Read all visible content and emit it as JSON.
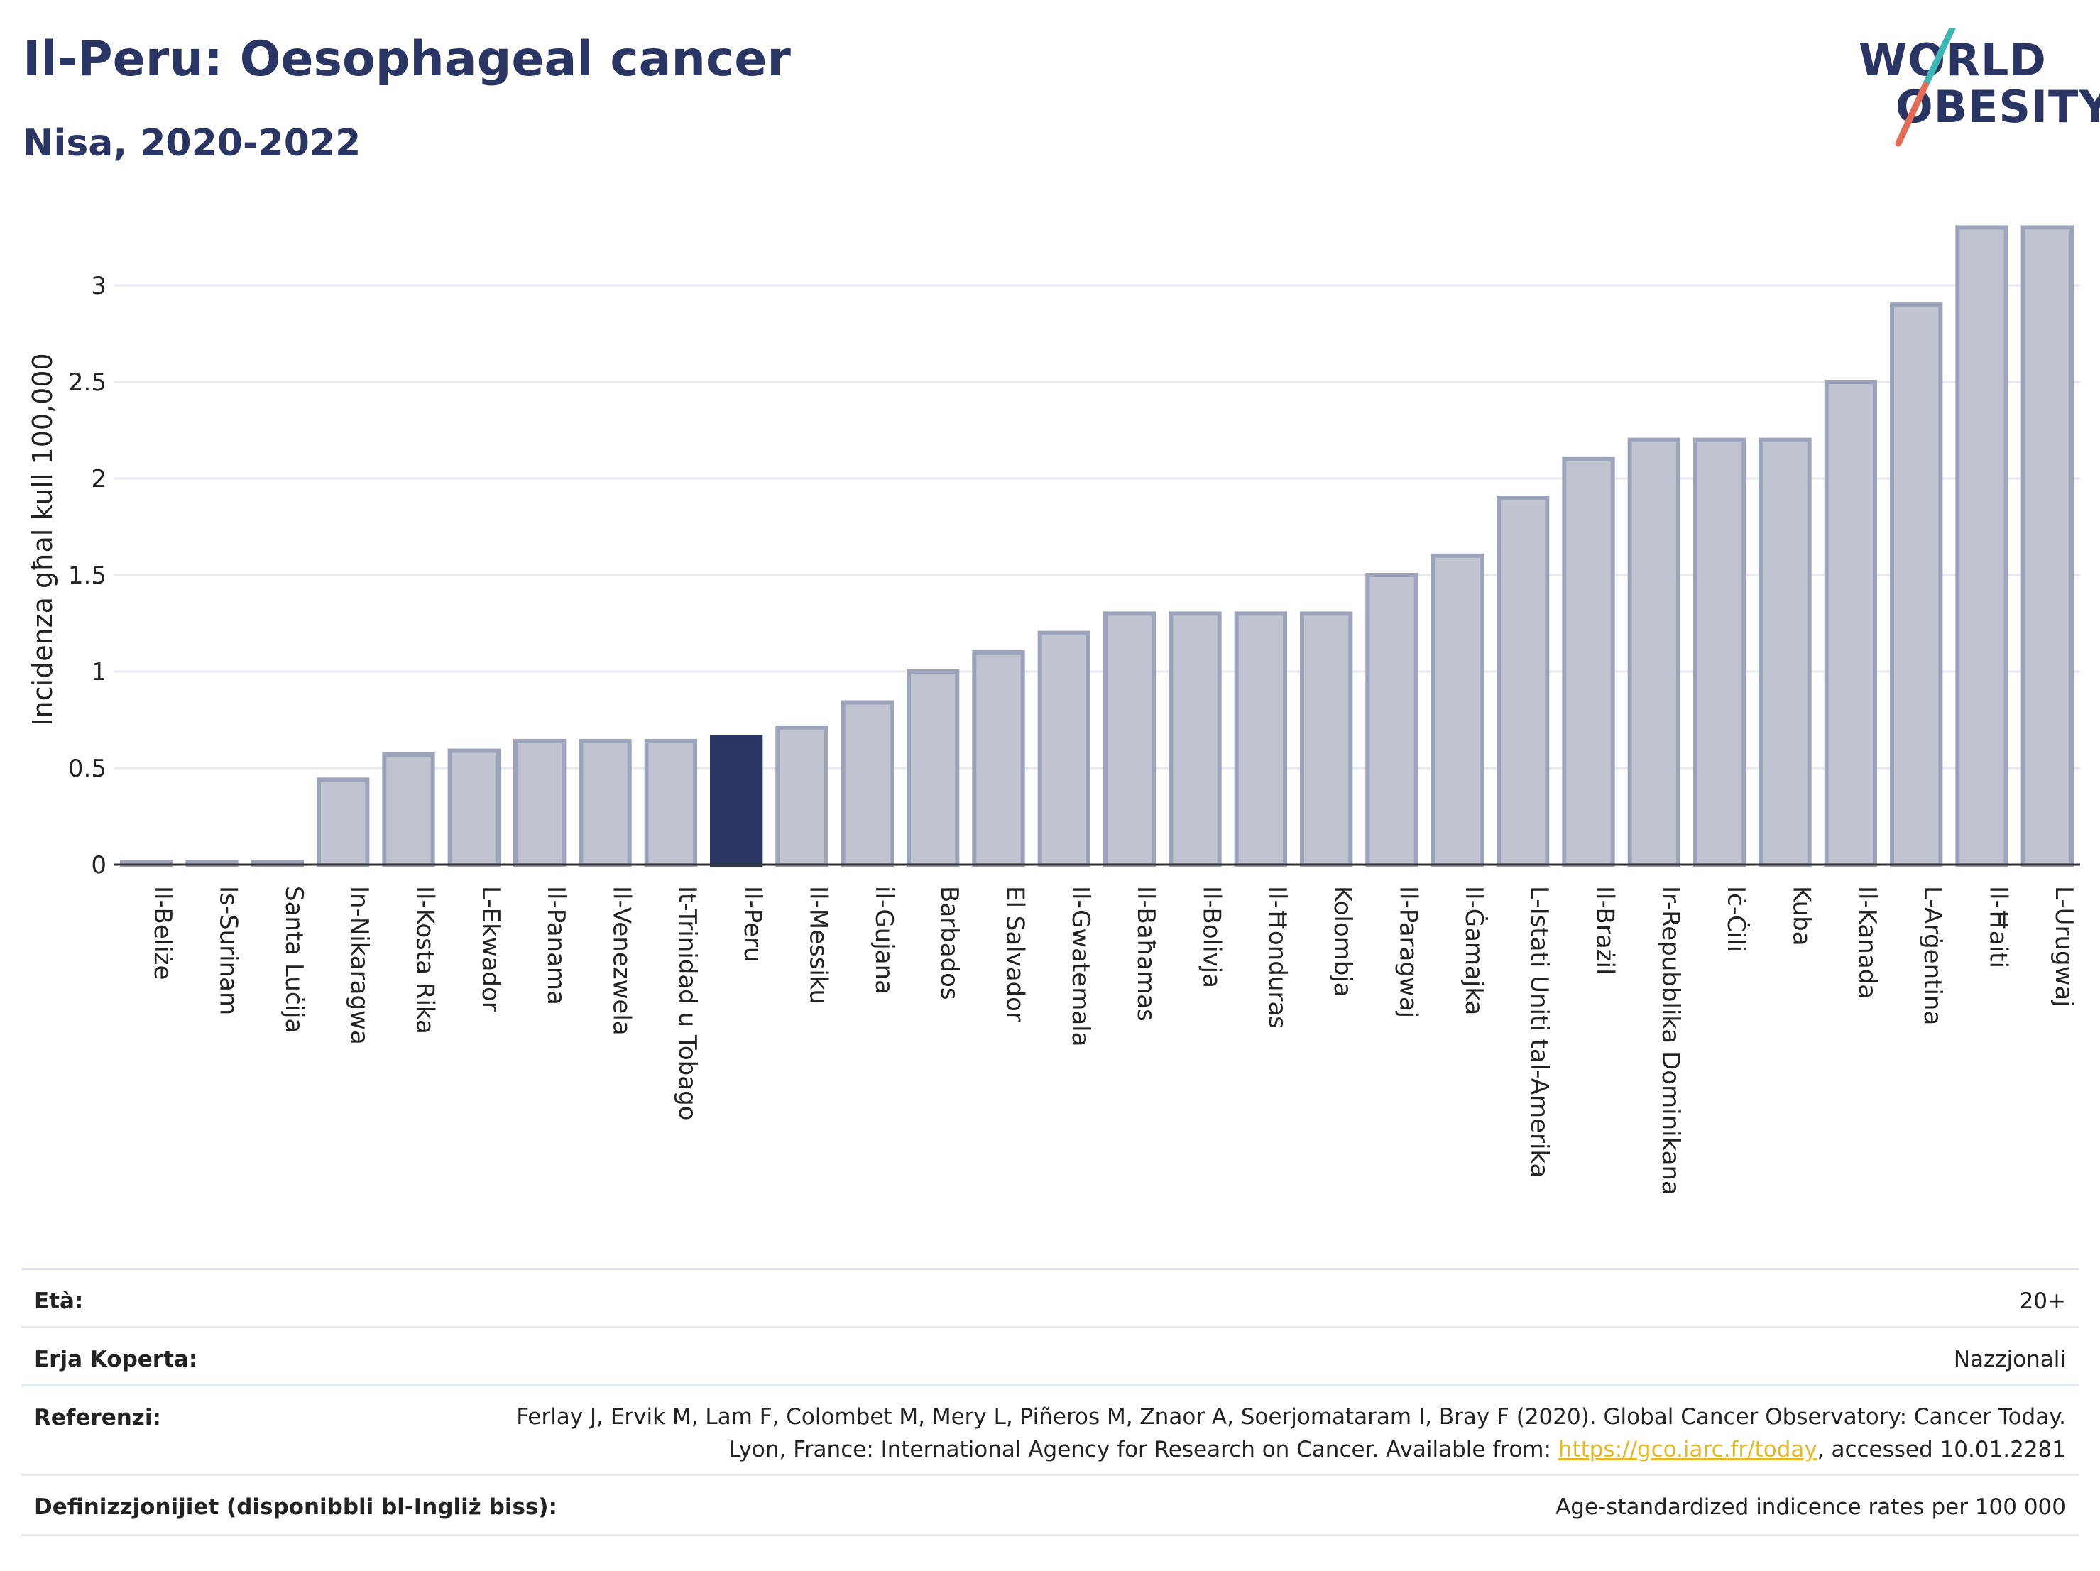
{
  "header": {
    "title": "Il-Peru: Oesophageal cancer",
    "subtitle": "Nisa, 2020-2022"
  },
  "logo": {
    "line1": "WORLD",
    "line2": "OBESITY"
  },
  "chart_data": {
    "type": "bar",
    "ylabel": "Incidenza għal kull 100,000",
    "xlabel": "",
    "ylim": [
      0,
      3.4
    ],
    "yticks": [
      0,
      0.5,
      1,
      1.5,
      2,
      2.5,
      3
    ],
    "ytick_labels": [
      "0",
      "0.5",
      "1",
      "1.5",
      "2",
      "2.5",
      "3"
    ],
    "grid": true,
    "highlight": "Il-Peru",
    "colors": {
      "bar": "#c0c4d0",
      "bar_edge": "#9ca3bb",
      "highlight": "#2a3563"
    },
    "categories": [
      "Il-Beliże",
      "Is-Surinam",
      "Santa Luċija",
      "In-Nikaragwa",
      "Il-Kosta Rika",
      "L-Ekwador",
      "Il-Panama",
      "Il-Venezwela",
      "It-Trinidad u Tobago",
      "Il-Peru",
      "Il-Messiku",
      "il-Gujana",
      "Barbados",
      "El Salvador",
      "Il-Gwatemala",
      "Il-Baħamas",
      "Il-Bolivja",
      "Il-Ħonduras",
      "Kolombja",
      "Il-Paragwaj",
      "Il-Ġamajka",
      "L-Istati Uniti tal-Amerika",
      "Il-Brażil",
      "Ir-Repubblika Dominikana",
      "Iċ-Ċili",
      "Kuba",
      "Il-Kanada",
      "L-Arġentina",
      "Il-Ħaiti",
      "L-Urugwaj"
    ],
    "values": [
      0.01,
      0.01,
      0.01,
      0.44,
      0.57,
      0.59,
      0.64,
      0.64,
      0.64,
      0.66,
      0.71,
      0.84,
      1.0,
      1.1,
      1.2,
      1.3,
      1.3,
      1.3,
      1.3,
      1.5,
      1.6,
      1.9,
      2.1,
      2.2,
      2.2,
      2.2,
      2.5,
      2.9,
      3.3,
      3.3
    ]
  },
  "footer": {
    "age_label": "Età:",
    "age_value": "20+",
    "area_label": "Erja Koperta:",
    "area_value": "Nazzjonali",
    "ref_label": "Referenzi:",
    "ref_text_1": "Ferlay J, Ervik M, Lam F, Colombet M, Mery L, Piñeros M, Znaor A, Soerjomataram I, Bray F (2020). Global Cancer Observatory: Cancer Today. Lyon, France: International Agency for Research on Cancer. Available from: ",
    "ref_link": "https://gco.iarc.fr/today",
    "ref_text_2": ", accessed 10.01.2281",
    "def_label": "Definizzjonijiet (disponibbli bl-Ingliż biss):",
    "def_value": "Age-standardized indicence rates per 100 000"
  }
}
